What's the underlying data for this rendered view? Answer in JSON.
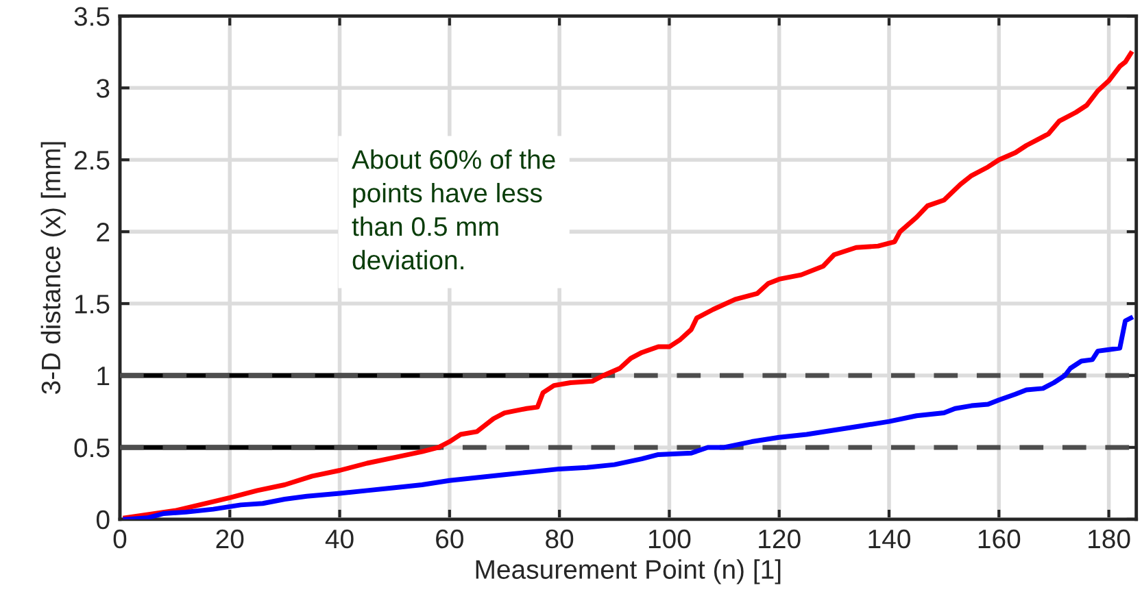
{
  "chart_data": {
    "type": "line",
    "xlabel": "Measurement Point (n) [1]",
    "ylabel": "3-D distance (x) [mm]",
    "xlim": [
      0,
      185
    ],
    "xticks": [
      0,
      20,
      40,
      60,
      80,
      100,
      120,
      140,
      160,
      180
    ],
    "ylim": [
      0,
      3.5
    ],
    "yticks": [
      0,
      0.5,
      1,
      1.5,
      2,
      2.5,
      3,
      3.5
    ],
    "grid": true,
    "legend": false,
    "line_style": "solid",
    "series": [
      {
        "color": "#000000",
        "x": [
          0,
          88
        ],
        "values": [
          1,
          1
        ]
      },
      {
        "color": "#000000",
        "x": [
          0,
          58
        ],
        "values": [
          0.5,
          0.5
        ]
      },
      {
        "color": "#4d4d4d",
        "line_style": "dashed",
        "x": [
          0,
          185
        ],
        "values": [
          1,
          1
        ]
      },
      {
        "color": "#4d4d4d",
        "line_style": "dashed",
        "x": [
          0,
          185
        ],
        "values": [
          0.5,
          0.5
        ]
      },
      {
        "color": "#ff0000",
        "x": [
          1,
          10,
          20,
          25,
          30,
          35,
          40,
          45,
          50,
          55,
          58,
          60,
          62,
          65,
          68,
          70,
          74,
          76,
          77,
          79,
          82,
          86,
          88,
          91,
          93,
          95,
          98,
          100,
          102,
          104,
          105,
          108,
          112,
          116,
          118,
          120,
          124,
          128,
          130,
          134,
          138,
          141,
          142,
          145,
          147,
          150,
          153,
          155,
          158,
          160,
          163,
          165,
          167,
          169,
          171,
          174,
          176,
          178,
          180,
          182,
          183,
          184
        ],
        "values": [
          0.01,
          0.06,
          0.15,
          0.2,
          0.24,
          0.3,
          0.34,
          0.39,
          0.43,
          0.47,
          0.5,
          0.54,
          0.59,
          0.61,
          0.7,
          0.74,
          0.77,
          0.78,
          0.88,
          0.93,
          0.95,
          0.96,
          1.0,
          1.05,
          1.12,
          1.16,
          1.2,
          1.2,
          1.25,
          1.32,
          1.4,
          1.46,
          1.53,
          1.57,
          1.64,
          1.67,
          1.7,
          1.76,
          1.84,
          1.89,
          1.9,
          1.93,
          2.0,
          2.1,
          2.18,
          2.22,
          2.33,
          2.39,
          2.45,
          2.5,
          2.55,
          2.6,
          2.64,
          2.68,
          2.77,
          2.83,
          2.88,
          2.98,
          3.05,
          3.15,
          3.18,
          3.24
        ]
      },
      {
        "color": "#0000ff",
        "x": [
          1,
          5,
          8,
          12,
          17,
          22,
          26,
          30,
          34,
          40,
          45,
          50,
          55,
          60,
          65,
          70,
          75,
          80,
          85,
          90,
          95,
          98,
          104,
          107,
          110,
          115,
          120,
          125,
          130,
          135,
          140,
          145,
          150,
          152,
          155,
          158,
          160,
          163,
          165,
          168,
          170,
          172,
          173,
          175,
          177,
          178,
          180,
          182,
          183,
          184
        ],
        "values": [
          0.0,
          0.01,
          0.04,
          0.05,
          0.07,
          0.1,
          0.11,
          0.14,
          0.16,
          0.18,
          0.2,
          0.22,
          0.24,
          0.27,
          0.29,
          0.31,
          0.33,
          0.35,
          0.36,
          0.38,
          0.42,
          0.45,
          0.46,
          0.5,
          0.5,
          0.54,
          0.57,
          0.59,
          0.62,
          0.65,
          0.68,
          0.72,
          0.74,
          0.77,
          0.79,
          0.8,
          0.83,
          0.87,
          0.9,
          0.91,
          0.95,
          1.0,
          1.05,
          1.1,
          1.11,
          1.17,
          1.18,
          1.19,
          1.38,
          1.4
        ]
      }
    ],
    "annotations": [
      "About 60% of the\npoints have less\nthan 0.5 mm\ndeviation."
    ]
  }
}
